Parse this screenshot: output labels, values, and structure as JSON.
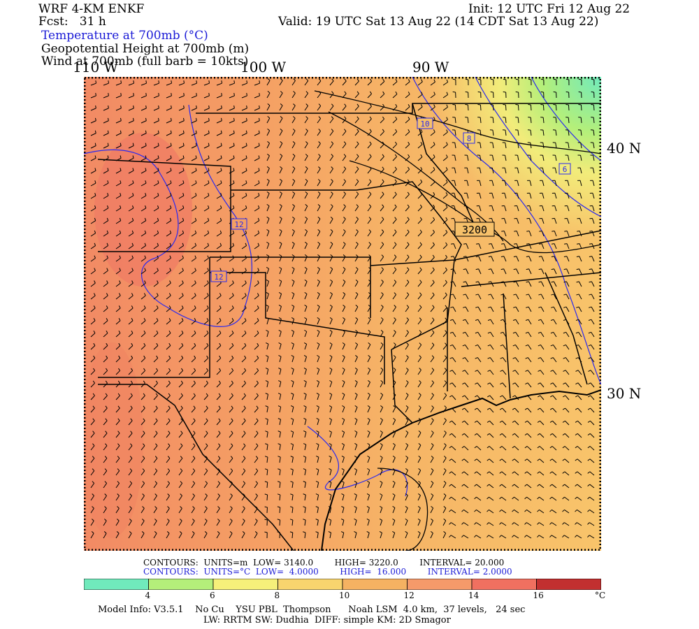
{
  "header": {
    "model": "WRF 4-KM ENKF",
    "fcst": "Fcst:   31 h",
    "init": "Init: 12 UTC Fri 12 Aug 22",
    "valid": "Valid: 19 UTC Sat 13 Aug 22 (14 CDT Sat 13 Aug 22)",
    "field1": "Temperature at 700mb (°C)",
    "field2": "Geopotential Height at 700mb (m)",
    "field3": "Wind at 700mb (full barb = 10kts)"
  },
  "map": {
    "lon_labels": [
      "110 W",
      "100 W",
      "90 W"
    ],
    "lat_labels": [
      "40 N",
      "30 N"
    ],
    "height_contour_label": "3200",
    "temp_contour_labels": [
      "10",
      "8",
      "6",
      "12",
      "12"
    ],
    "colors": {
      "background": "#f5b262",
      "warm": "#f08a62",
      "hot": "#f06a5a",
      "cool": "#f8d46e",
      "cooler": "#dce97a",
      "cold": "#8ce8a0",
      "coldest": "#70eabc",
      "temp_contour": "#2222ee",
      "border": "#000000"
    }
  },
  "contour_info": {
    "line1": {
      "label": "CONTOURS:",
      "units": "UNITS=m",
      "low": "LOW=",
      "low_val": "3140.0",
      "high": "HIGH=",
      "high_val": "3220.0",
      "interval": "INTERVAL=",
      "interval_val": "20.000"
    },
    "line2": {
      "label": "CONTOURS:",
      "units": "UNITS=°C",
      "low": "LOW=",
      "low_val": "4.0000",
      "high": "HIGH=",
      "high_val": "16.000",
      "interval": "INTERVAL=",
      "interval_val": "2.0000"
    }
  },
  "colorbar": {
    "colors": [
      "#70eabc",
      "#b4ef7a",
      "#f6f07a",
      "#f8d46e",
      "#f5b262",
      "#f59a6a",
      "#f07060",
      "#c23030"
    ],
    "tick_labels": [
      "4",
      "6",
      "8",
      "10",
      "12",
      "14",
      "16"
    ],
    "unit": "°C"
  },
  "footer": {
    "line1": "Model Info: V3.5.1    No Cu    YSU PBL  Thompson      Noah LSM  4.0 km,  37 levels,   24 sec",
    "line2": "LW: RRTM SW: Dudhia  DIFF: simple KM: 2D Smagor"
  }
}
